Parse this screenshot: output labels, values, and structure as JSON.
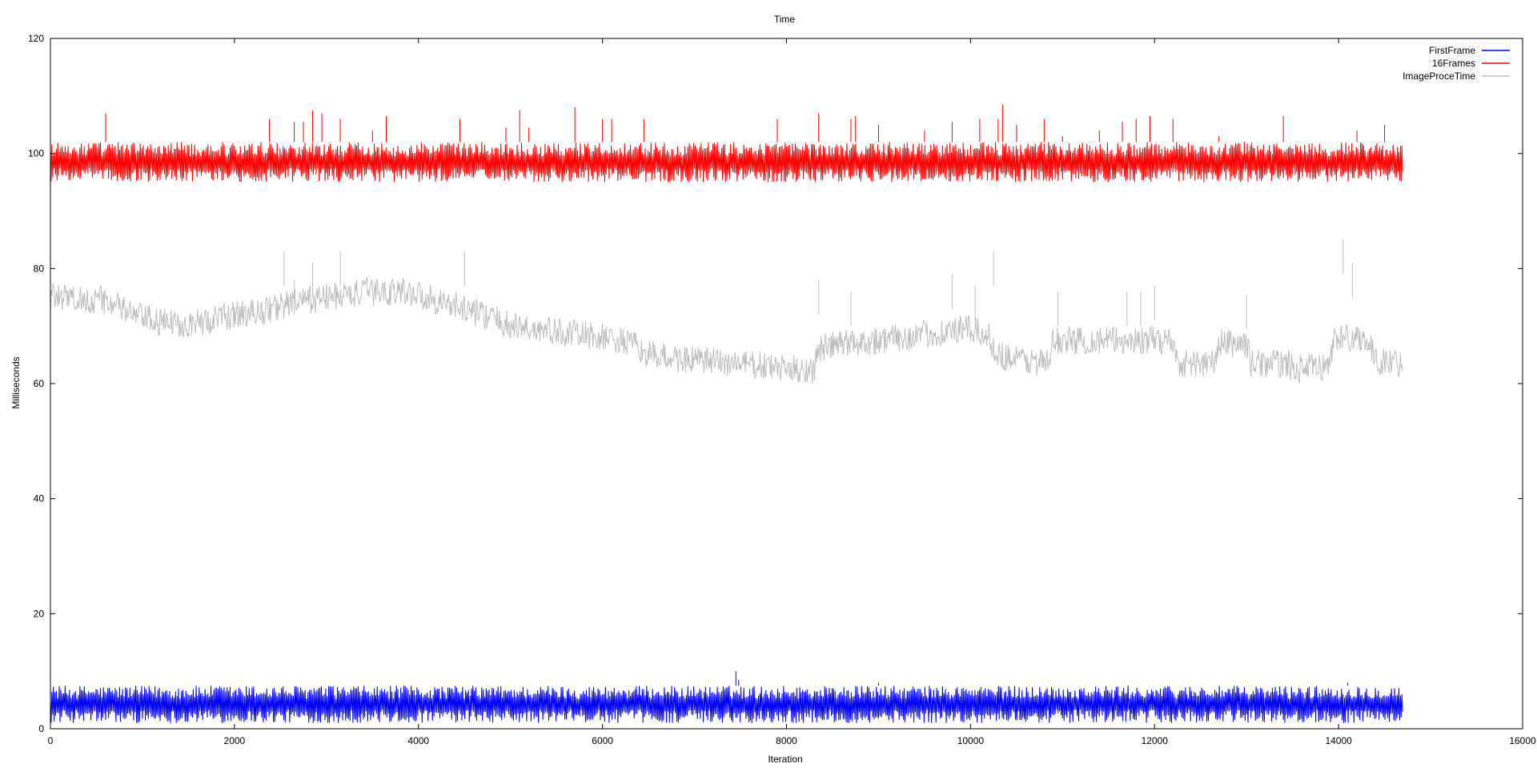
{
  "chart_data": {
    "type": "line",
    "title": "Time",
    "xlabel": "Iteration",
    "ylabel": "Milliseconds",
    "xlim": [
      0,
      16000
    ],
    "ylim": [
      0,
      120
    ],
    "xticks": [
      0,
      2000,
      4000,
      6000,
      8000,
      10000,
      12000,
      14000,
      16000
    ],
    "yticks": [
      0,
      20,
      40,
      60,
      80,
      100,
      120
    ],
    "x_extent": [
      0,
      14700
    ],
    "grid": false,
    "legend_position": "top-right",
    "series": [
      {
        "name": "FirstFrame",
        "color": "#0000ff",
        "band_low": 1,
        "band_high": 7.5,
        "spikes": [
          [
            7450,
            10
          ],
          [
            7480,
            8.5
          ],
          [
            9000,
            8
          ],
          [
            14100,
            8
          ]
        ]
      },
      {
        "name": "16Frames",
        "color": "#ff0000",
        "band_low": 95,
        "band_high": 102,
        "spikes": [
          [
            600,
            107
          ],
          [
            2380,
            106
          ],
          [
            2650,
            105.5
          ],
          [
            2750,
            105.5
          ],
          [
            2850,
            107.5
          ],
          [
            2950,
            107
          ],
          [
            3150,
            106
          ],
          [
            3500,
            104
          ],
          [
            3650,
            106.5
          ],
          [
            4450,
            106
          ],
          [
            4950,
            104.5
          ],
          [
            5100,
            107.5
          ],
          [
            5200,
            104.5
          ],
          [
            5700,
            108
          ],
          [
            6000,
            106
          ],
          [
            6100,
            106
          ],
          [
            6450,
            106
          ],
          [
            7900,
            106
          ],
          [
            8350,
            107
          ],
          [
            8700,
            106
          ],
          [
            8750,
            106.5
          ],
          [
            9000,
            105
          ],
          [
            9500,
            104
          ],
          [
            9800,
            105.5
          ],
          [
            10100,
            106
          ],
          [
            10300,
            106
          ],
          [
            10350,
            108.5
          ],
          [
            10500,
            105
          ],
          [
            10800,
            106
          ],
          [
            11000,
            103
          ],
          [
            11400,
            104
          ],
          [
            11650,
            105.5
          ],
          [
            11800,
            106
          ],
          [
            11950,
            106.5
          ],
          [
            12200,
            106
          ],
          [
            12700,
            103
          ],
          [
            13400,
            106.5
          ],
          [
            14200,
            104
          ],
          [
            14500,
            105
          ]
        ]
      },
      {
        "name": "ImageProceTime",
        "color": "#bebebe",
        "trend": [
          [
            0,
            75
          ],
          [
            600,
            74.5
          ],
          [
            900,
            72
          ],
          [
            1200,
            70.5
          ],
          [
            1600,
            70.5
          ],
          [
            2000,
            72
          ],
          [
            2300,
            72.5
          ],
          [
            2600,
            74
          ],
          [
            3000,
            75
          ],
          [
            3500,
            76
          ],
          [
            3900,
            76
          ],
          [
            4300,
            74
          ],
          [
            4700,
            72
          ],
          [
            5000,
            70
          ],
          [
            5500,
            69
          ],
          [
            6000,
            68
          ],
          [
            6300,
            67
          ],
          [
            6500,
            65
          ],
          [
            7000,
            64
          ],
          [
            7500,
            63.5
          ],
          [
            8000,
            62.5
          ],
          [
            8300,
            62.5
          ],
          [
            8350,
            66
          ],
          [
            8600,
            67
          ],
          [
            9000,
            67.5
          ],
          [
            9500,
            68.5
          ],
          [
            10000,
            69.5
          ],
          [
            10200,
            68
          ],
          [
            10300,
            65
          ],
          [
            10600,
            64
          ],
          [
            10850,
            63.5
          ],
          [
            10900,
            67.5
          ],
          [
            11500,
            67.5
          ],
          [
            12000,
            67.5
          ],
          [
            12200,
            67.5
          ],
          [
            12250,
            63.5
          ],
          [
            12650,
            63.5
          ],
          [
            12700,
            67
          ],
          [
            13000,
            67
          ],
          [
            13050,
            63.5
          ],
          [
            13450,
            63.5
          ],
          [
            13500,
            62.5
          ],
          [
            13900,
            63
          ],
          [
            13950,
            68
          ],
          [
            14300,
            68
          ],
          [
            14400,
            64
          ],
          [
            14700,
            63.5
          ]
        ],
        "jitter": 2.5,
        "spikes": [
          [
            2540,
            83
          ],
          [
            2650,
            78
          ],
          [
            2850,
            81
          ],
          [
            3150,
            83
          ],
          [
            4500,
            83
          ],
          [
            8350,
            78
          ],
          [
            8700,
            76
          ],
          [
            9800,
            79
          ],
          [
            10050,
            77
          ],
          [
            10250,
            83
          ],
          [
            10950,
            76
          ],
          [
            11700,
            76
          ],
          [
            11850,
            76
          ],
          [
            12000,
            77
          ],
          [
            13000,
            75.5
          ],
          [
            14050,
            85
          ],
          [
            14150,
            81
          ]
        ]
      }
    ]
  }
}
